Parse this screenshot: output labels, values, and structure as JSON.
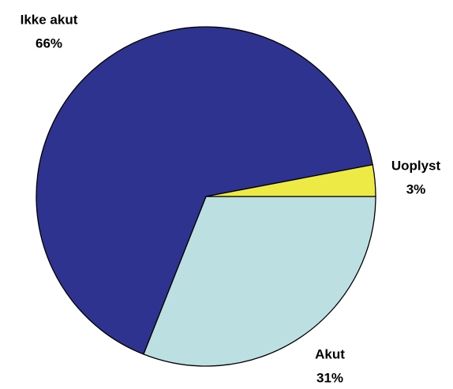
{
  "chart_data": {
    "type": "pie",
    "categories": [
      "Akut",
      "Ikke akut",
      "Uoplyst"
    ],
    "values": [
      31,
      66,
      3
    ],
    "value_labels": [
      "31%",
      "66%",
      "3%"
    ],
    "colors": [
      "#bcdfe2",
      "#2e3390",
      "#eeea45"
    ]
  }
}
